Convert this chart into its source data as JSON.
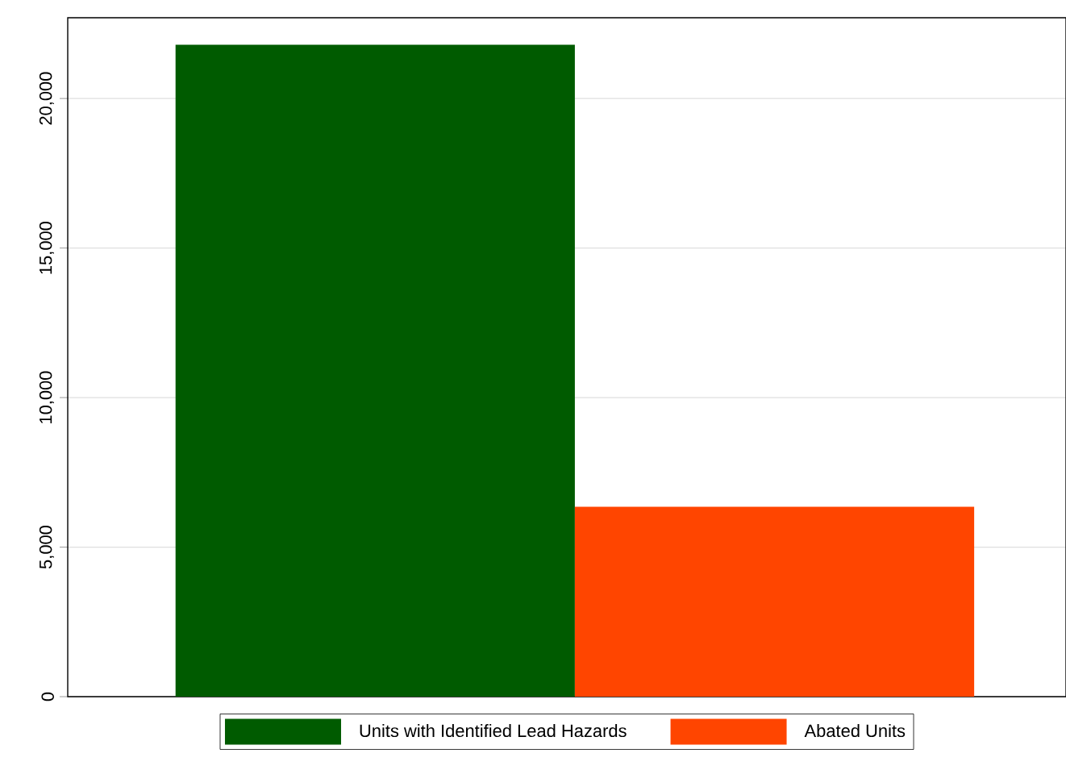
{
  "chart_data": {
    "type": "bar",
    "categories": [
      null
    ],
    "series": [
      {
        "name": "Units with Identified Lead Hazards",
        "color": "#005b00",
        "values": [
          21800
        ]
      },
      {
        "name": "Abated Units",
        "color": "#ff4500",
        "values": [
          6350
        ]
      }
    ],
    "ylim": [
      0,
      22700
    ],
    "yticks": [
      0,
      {
        "value": 5000,
        "label": "5,000"
      },
      {
        "value": 10000,
        "label": "10,000"
      },
      {
        "value": 15000,
        "label": "15,000"
      },
      {
        "value": 20000,
        "label": "20,000"
      }
    ],
    "grid": "y",
    "legend": "bottom"
  }
}
